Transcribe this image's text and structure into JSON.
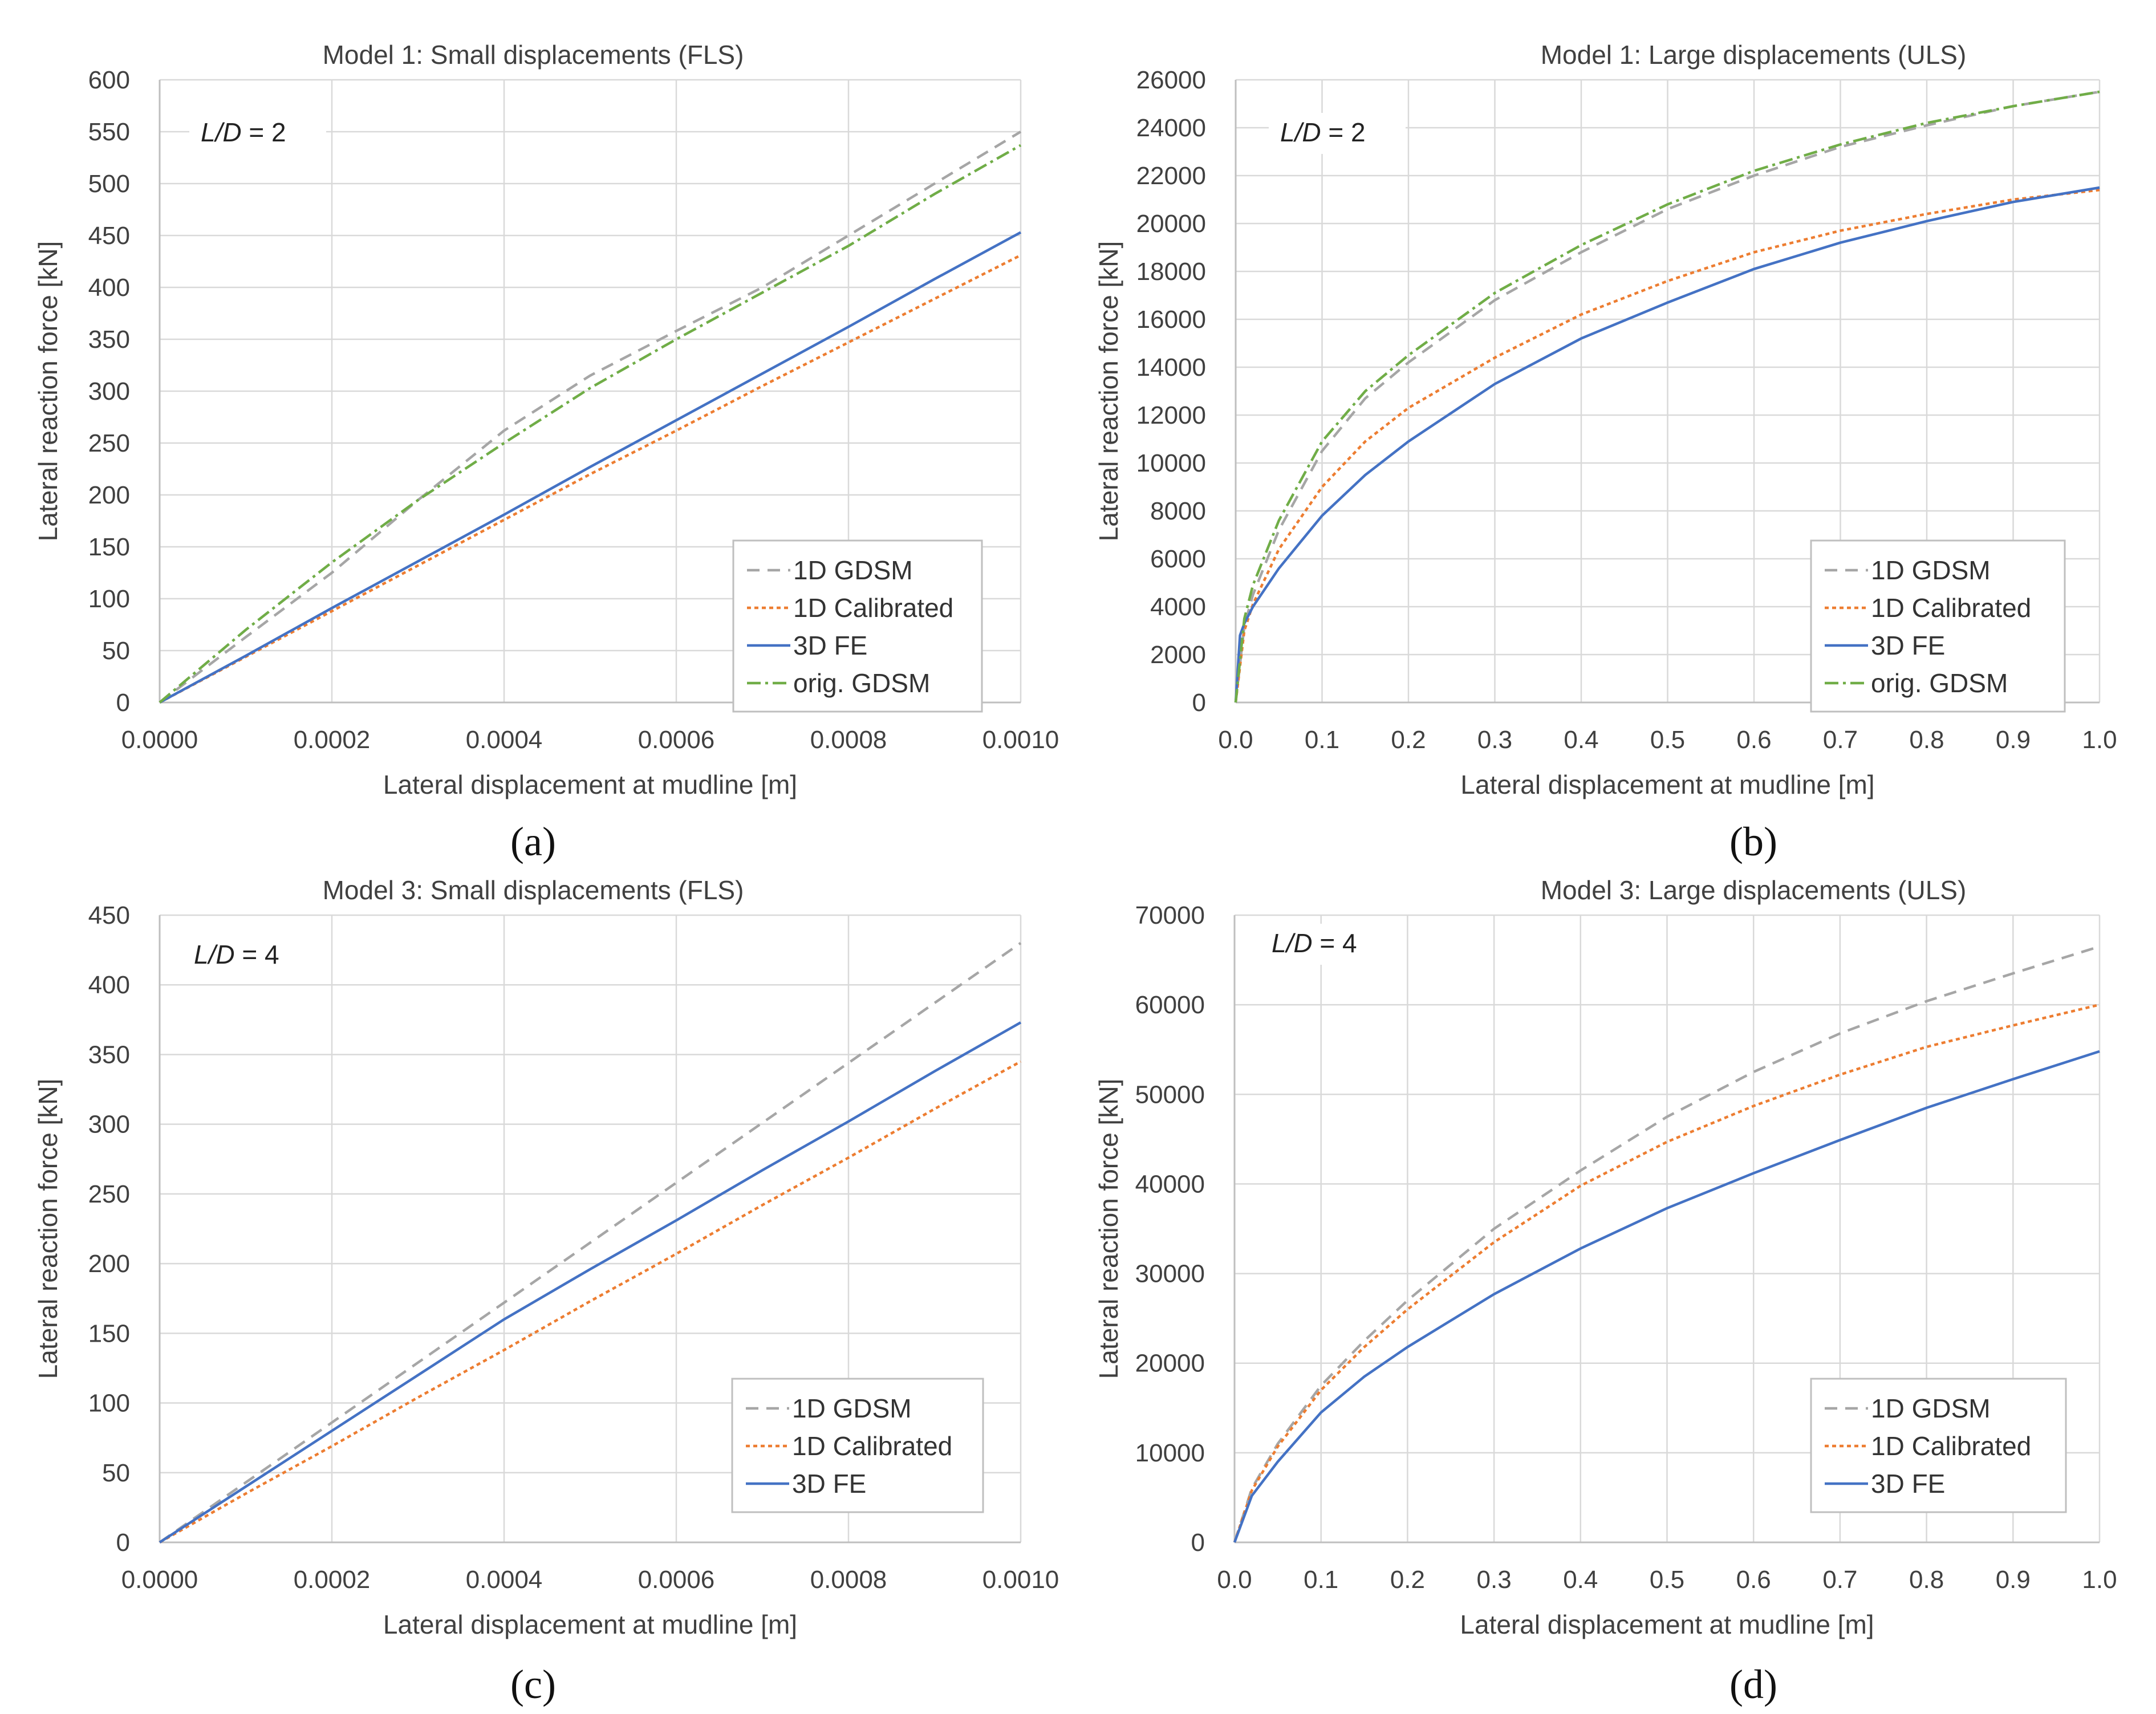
{
  "chart_data": [
    {
      "type": "line",
      "panel": "(a)",
      "title": "Model 1: Small displacements (FLS)",
      "note_var": "L/D",
      "note_value": " = 2",
      "xlabel": "Lateral displacement at mudline [m]",
      "ylabel": "Lateral reaction force [kN]",
      "xlim": [
        0,
        0.001
      ],
      "ylim": [
        0,
        600
      ],
      "x_ticks": [
        "0.0000",
        "0.0002",
        "0.0004",
        "0.0006",
        "0.0008",
        "0.0010"
      ],
      "y_ticks": [
        "0",
        "50",
        "100",
        "150",
        "200",
        "250",
        "300",
        "350",
        "400",
        "450",
        "500",
        "550",
        "600"
      ],
      "series": [
        {
          "name": "1D GDSM",
          "color": "#a6a6a6",
          "dash": "22 14",
          "x": [
            0,
            0.0001,
            0.0002,
            0.0003,
            0.0004,
            0.0005,
            0.0006,
            0.0007,
            0.0008,
            0.0009,
            0.001
          ],
          "y": [
            0,
            63,
            125,
            195,
            262,
            315,
            358,
            400,
            450,
            500,
            550
          ]
        },
        {
          "name": "1D Calibrated",
          "color": "#ed7d31",
          "dash": "7 6",
          "x": [
            0,
            0.0001,
            0.0002,
            0.0003,
            0.0004,
            0.0005,
            0.0006,
            0.0007,
            0.0008,
            0.0009,
            0.001
          ],
          "y": [
            0,
            44,
            88,
            132,
            176,
            220,
            262,
            305,
            347,
            389,
            431
          ]
        },
        {
          "name": "3D FE",
          "color": "#4472c4",
          "dash": "",
          "x": [
            0,
            0.0001,
            0.0002,
            0.0003,
            0.0004,
            0.0005,
            0.0006,
            0.0007,
            0.0008,
            0.0009,
            0.001
          ],
          "y": [
            0,
            45,
            91,
            136,
            181,
            227,
            272,
            317,
            362,
            408,
            453
          ]
        },
        {
          "name": "orig. GDSM",
          "color": "#70ad47",
          "dash": "24 8 5 8",
          "x": [
            0,
            0.0001,
            0.0002,
            0.0003,
            0.0004,
            0.0005,
            0.0006,
            0.0007,
            0.0008,
            0.0009,
            0.001
          ],
          "y": [
            0,
            70,
            135,
            195,
            250,
            303,
            350,
            395,
            440,
            490,
            537
          ]
        }
      ]
    },
    {
      "type": "line",
      "panel": "(b)",
      "title": "Model 1: Large displacements (ULS)",
      "note_var": "L/D",
      "note_value": " = 2",
      "xlabel": "Lateral displacement at mudline [m]",
      "ylabel": "Lateral reaction force [kN]",
      "xlim": [
        0,
        1.0
      ],
      "ylim": [
        0,
        26000
      ],
      "x_ticks": [
        "0.0",
        "0.1",
        "0.2",
        "0.3",
        "0.4",
        "0.5",
        "0.6",
        "0.7",
        "0.8",
        "0.9",
        "1.0"
      ],
      "y_ticks": [
        "0",
        "2000",
        "4000",
        "6000",
        "8000",
        "10000",
        "12000",
        "14000",
        "16000",
        "18000",
        "20000",
        "22000",
        "24000",
        "26000"
      ],
      "series": [
        {
          "name": "1D GDSM",
          "color": "#a6a6a6",
          "dash": "22 14",
          "x": [
            0,
            0.01,
            0.02,
            0.05,
            0.1,
            0.15,
            0.2,
            0.3,
            0.4,
            0.5,
            0.6,
            0.7,
            0.8,
            0.9,
            1.0
          ],
          "y": [
            0,
            3200,
            4500,
            7200,
            10500,
            12700,
            14200,
            16800,
            18800,
            20600,
            22000,
            23200,
            24100,
            24900,
            25500
          ]
        },
        {
          "name": "1D Calibrated",
          "color": "#ed7d31",
          "dash": "7 6",
          "x": [
            0,
            0.01,
            0.02,
            0.05,
            0.1,
            0.15,
            0.2,
            0.3,
            0.4,
            0.5,
            0.6,
            0.7,
            0.8,
            0.9,
            1.0
          ],
          "y": [
            0,
            3000,
            4100,
            6400,
            9000,
            10900,
            12300,
            14400,
            16200,
            17600,
            18800,
            19700,
            20400,
            21000,
            21400
          ]
        },
        {
          "name": "3D FE",
          "color": "#4472c4",
          "dash": "",
          "x": [
            0,
            0.005,
            0.01,
            0.02,
            0.05,
            0.1,
            0.15,
            0.2,
            0.3,
            0.4,
            0.5,
            0.6,
            0.7,
            0.8,
            0.9,
            1.0
          ],
          "y": [
            0,
            2800,
            3300,
            4000,
            5600,
            7800,
            9500,
            10900,
            13300,
            15200,
            16700,
            18100,
            19200,
            20100,
            20900,
            21500
          ]
        },
        {
          "name": "orig. GDSM",
          "color": "#70ad47",
          "dash": "24 8 5 8",
          "x": [
            0,
            0.01,
            0.02,
            0.05,
            0.1,
            0.15,
            0.2,
            0.3,
            0.4,
            0.5,
            0.6,
            0.7,
            0.8,
            0.9,
            1.0
          ],
          "y": [
            0,
            3500,
            4900,
            7600,
            10900,
            13000,
            14500,
            17100,
            19100,
            20800,
            22200,
            23300,
            24200,
            24900,
            25500
          ]
        }
      ]
    },
    {
      "type": "line",
      "panel": "(c)",
      "title": "Model 3: Small displacements (FLS)",
      "note_var": "L/D",
      "note_value": " = 4",
      "xlabel": "Lateral displacement at mudline [m]",
      "ylabel": "Lateral reaction force [kN]",
      "xlim": [
        0,
        0.001
      ],
      "ylim": [
        0,
        450
      ],
      "x_ticks": [
        "0.0000",
        "0.0002",
        "0.0004",
        "0.0006",
        "0.0008",
        "0.0010"
      ],
      "y_ticks": [
        "0",
        "50",
        "100",
        "150",
        "200",
        "250",
        "300",
        "350",
        "400",
        "450"
      ],
      "series": [
        {
          "name": "1D GDSM",
          "color": "#a6a6a6",
          "dash": "22 14",
          "x": [
            0,
            0.0001,
            0.0002,
            0.0003,
            0.0004,
            0.0005,
            0.0006,
            0.0007,
            0.0008,
            0.0009,
            0.001
          ],
          "y": [
            0,
            43,
            86,
            129,
            172,
            215,
            258,
            301,
            344,
            387,
            430
          ]
        },
        {
          "name": "1D Calibrated",
          "color": "#ed7d31",
          "dash": "7 6",
          "x": [
            0,
            0.0001,
            0.0002,
            0.0003,
            0.0004,
            0.0005,
            0.0006,
            0.0007,
            0.0008,
            0.0009,
            0.001
          ],
          "y": [
            0,
            35,
            69,
            104,
            138,
            173,
            207,
            242,
            276,
            311,
            345
          ]
        },
        {
          "name": "3D FE",
          "color": "#4472c4",
          "dash": "",
          "x": [
            0,
            0.0001,
            0.0002,
            0.0003,
            0.0004,
            0.0005,
            0.0006,
            0.0007,
            0.0008,
            0.0009,
            0.001
          ],
          "y": [
            0,
            40,
            80,
            120,
            160,
            196,
            231,
            267,
            302,
            338,
            373
          ]
        }
      ]
    },
    {
      "type": "line",
      "panel": "(d)",
      "title": "Model 3: Large displacements (ULS)",
      "note_var": "L/D",
      "note_value": " = 4",
      "xlabel": "Lateral displacement at mudline [m]",
      "ylabel": "Lateral reaction force [kN]",
      "xlim": [
        0,
        1.0
      ],
      "ylim": [
        0,
        70000
      ],
      "x_ticks": [
        "0.0",
        "0.1",
        "0.2",
        "0.3",
        "0.4",
        "0.5",
        "0.6",
        "0.7",
        "0.8",
        "0.9",
        "1.0"
      ],
      "y_ticks": [
        "0",
        "10000",
        "20000",
        "30000",
        "40000",
        "50000",
        "60000",
        "70000"
      ],
      "series": [
        {
          "name": "1D GDSM",
          "color": "#a6a6a6",
          "dash": "22 14",
          "x": [
            0,
            0.02,
            0.05,
            0.1,
            0.15,
            0.2,
            0.3,
            0.4,
            0.5,
            0.6,
            0.7,
            0.8,
            0.9,
            1.0
          ],
          "y": [
            0,
            6000,
            11000,
            17500,
            22500,
            27000,
            35000,
            41500,
            47500,
            52500,
            56800,
            60400,
            63500,
            66500
          ]
        },
        {
          "name": "1D Calibrated",
          "color": "#ed7d31",
          "dash": "7 6",
          "x": [
            0,
            0.02,
            0.05,
            0.1,
            0.15,
            0.2,
            0.3,
            0.4,
            0.5,
            0.6,
            0.7,
            0.8,
            0.9,
            1.0
          ],
          "y": [
            0,
            5800,
            10700,
            17000,
            21800,
            26000,
            33500,
            39800,
            44700,
            48700,
            52200,
            55300,
            57700,
            60000
          ]
        },
        {
          "name": "3D FE",
          "color": "#4472c4",
          "dash": "",
          "x": [
            0,
            0.02,
            0.05,
            0.1,
            0.15,
            0.2,
            0.3,
            0.4,
            0.5,
            0.6,
            0.7,
            0.8,
            0.9,
            1.0
          ],
          "y": [
            0,
            5200,
            9000,
            14500,
            18500,
            21800,
            27700,
            32800,
            37300,
            41200,
            44900,
            48500,
            51700,
            54800
          ]
        }
      ]
    }
  ]
}
